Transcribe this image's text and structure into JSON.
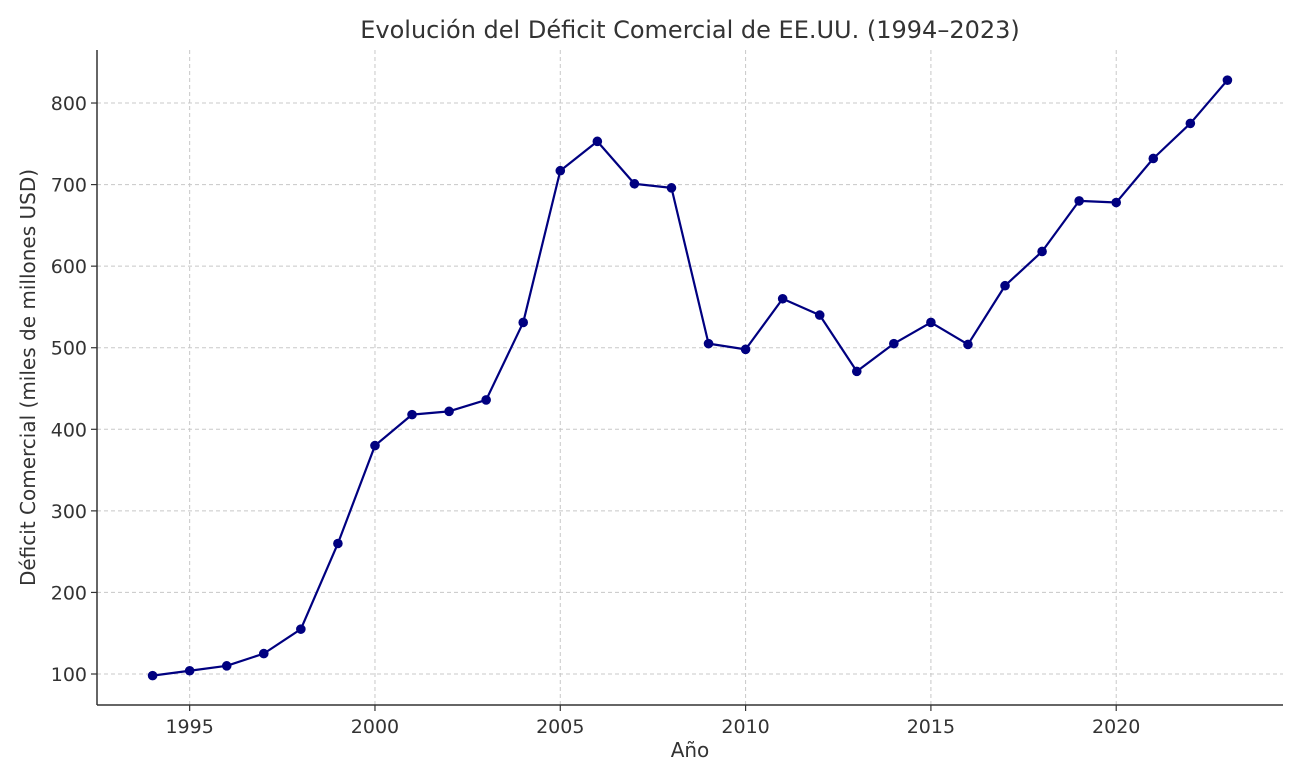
{
  "chart_data": {
    "type": "line",
    "title": "Evolución del Déficit Comercial de EE.UU. (1994–2023)",
    "xlabel": "Año",
    "ylabel": "Déficit Comercial (miles de millones USD)",
    "xlim": [
      1992.5,
      2024.5
    ],
    "ylim": [
      62,
      865
    ],
    "xticks": [
      1995,
      2000,
      2005,
      2010,
      2015,
      2020
    ],
    "yticks": [
      100,
      200,
      300,
      400,
      500,
      600,
      700,
      800
    ],
    "grid": true,
    "line_color": "#000080",
    "x": [
      1994,
      1995,
      1996,
      1997,
      1998,
      1999,
      2000,
      2001,
      2002,
      2003,
      2004,
      2005,
      2006,
      2007,
      2008,
      2009,
      2010,
      2011,
      2012,
      2013,
      2014,
      2015,
      2016,
      2017,
      2018,
      2019,
      2020,
      2021,
      2022,
      2023
    ],
    "series": [
      {
        "values": [
          98,
          104,
          110,
          125,
          155,
          260,
          380,
          418,
          422,
          436,
          531,
          717,
          753,
          701,
          696,
          505,
          498,
          560,
          540,
          471,
          505,
          531,
          504,
          576,
          618,
          680,
          678,
          732,
          775,
          828
        ]
      }
    ]
  }
}
